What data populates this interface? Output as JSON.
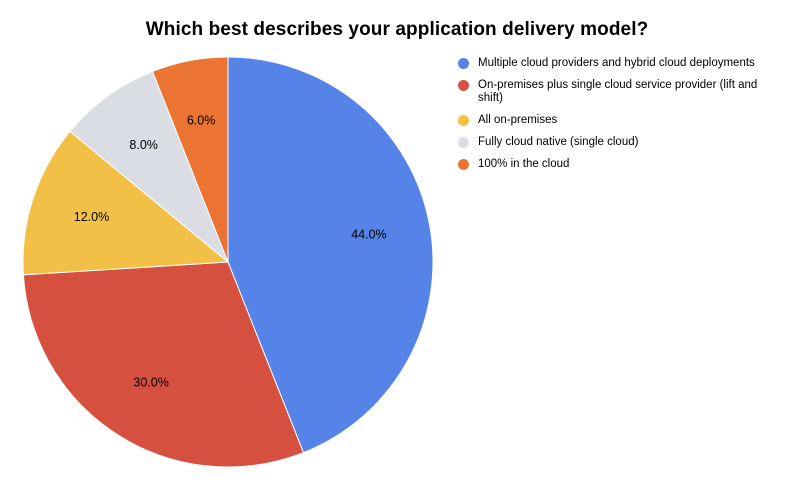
{
  "chart_data": {
    "type": "pie",
    "title": "Which best describes your application delivery model?",
    "legend_position": "right",
    "slices": [
      {
        "label": "Multiple cloud providers and hybrid cloud deployments",
        "value": 44.0,
        "display": "44.0%",
        "color": "#5583E8"
      },
      {
        "label": "On-premises plus single cloud service provider (lift and shift)",
        "value": 30.0,
        "display": "30.0%",
        "color": "#D65040"
      },
      {
        "label": "All on-premises",
        "value": 12.0,
        "display": "12.0%",
        "color": "#F2C046"
      },
      {
        "label": "Fully cloud native (single cloud)",
        "value": 8.0,
        "display": "8.0%",
        "color": "#DBDDE5"
      },
      {
        "label": "100% in the cloud",
        "value": 6.0,
        "display": "6.0%",
        "color": "#EC7432"
      }
    ]
  }
}
